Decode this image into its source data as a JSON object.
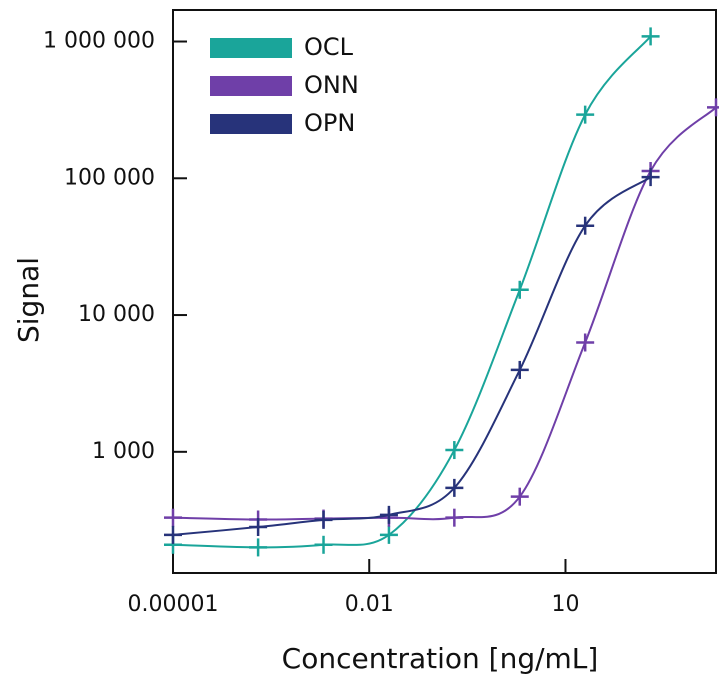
{
  "chart_data": {
    "type": "scatter-line",
    "x_label": "Concentration  [ng/mL]",
    "y_label": "Signal",
    "x_log": true,
    "y_log": true,
    "xlim": [
      1e-05,
      2000
    ],
    "ylim": [
      130,
      1700000
    ],
    "xticks": [
      {
        "value": 1e-05,
        "label": "0.00001"
      },
      0.01,
      10
    ],
    "yticks": [
      {
        "value": 1000,
        "label": "1 000"
      },
      {
        "value": 10000,
        "label": "10 000"
      },
      {
        "value": 100000,
        "label": "100 000"
      },
      {
        "value": 1000000,
        "label": "1 000 000"
      }
    ],
    "legend": "top-left",
    "series": [
      {
        "name": "OCL",
        "color": "#1aa59a",
        "x": [
          1e-05,
          0.0002,
          0.002,
          0.02,
          0.2,
          2,
          20,
          200
        ],
        "values": [
          209,
          200,
          209,
          247,
          1030,
          15300,
          292000,
          1090000
        ]
      },
      {
        "name": "ONN",
        "color": "#6f3fa8",
        "x": [
          1e-05,
          0.0002,
          0.002,
          0.02,
          0.2,
          2,
          20,
          200,
          2000
        ],
        "values": [
          330,
          320,
          325,
          330,
          330,
          470,
          6300,
          113000,
          330000
        ]
      },
      {
        "name": "OPN",
        "color": "#27337a",
        "x": [
          1e-05,
          0.0002,
          0.002,
          0.02,
          0.2,
          2,
          20,
          200
        ],
        "values": [
          247,
          282,
          318,
          346,
          545,
          3970,
          45000,
          102000
        ]
      }
    ]
  }
}
